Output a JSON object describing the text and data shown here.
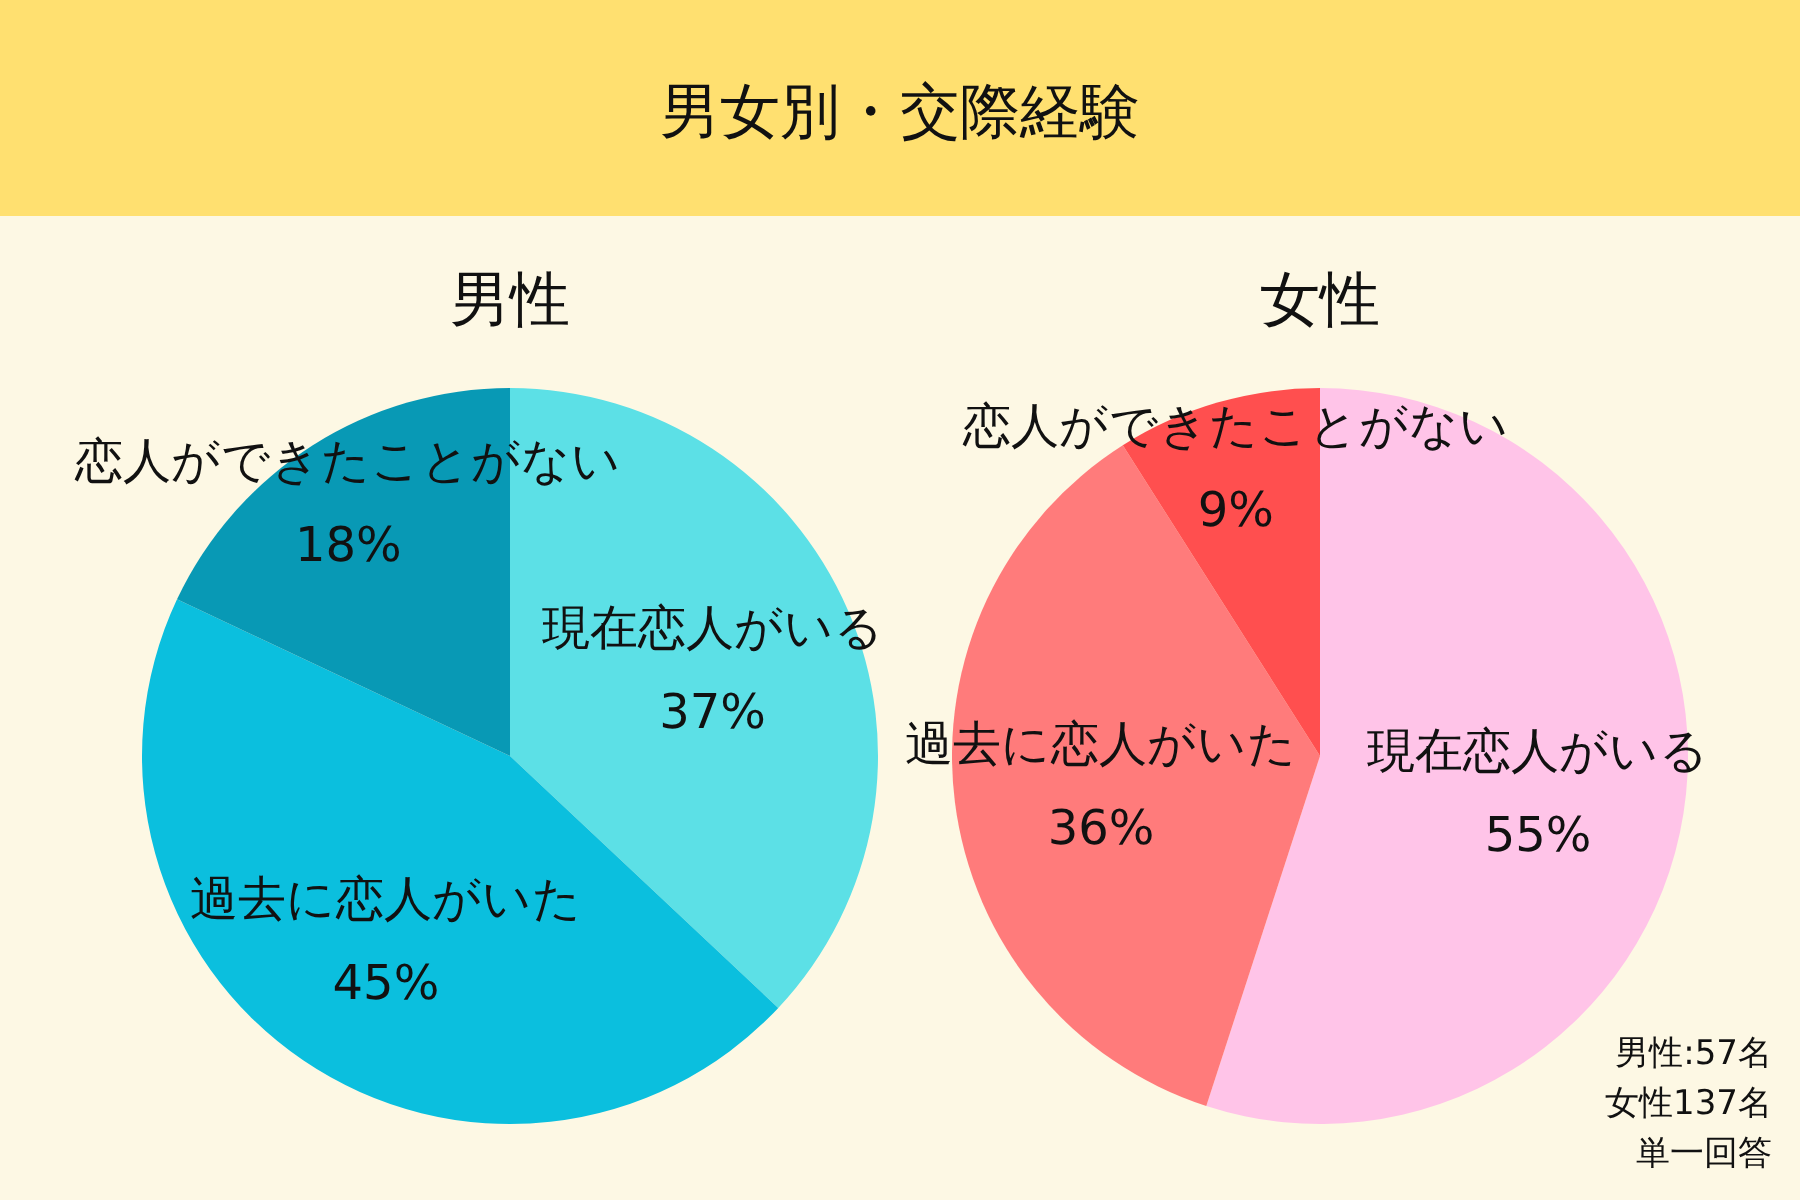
{
  "chart_data": [
    {
      "type": "pie",
      "title": "男女別・交際経験",
      "subtitle": "男性",
      "categories": [
        "現在恋人がいる",
        "過去に恋人がいた",
        "恋人ができたことがない"
      ],
      "values": [
        37,
        45,
        18
      ],
      "colors": [
        "#5ce0e6",
        "#0bbfde",
        "#0899b5"
      ],
      "value_labels": [
        "37%",
        "45%",
        "18%"
      ]
    },
    {
      "type": "pie",
      "subtitle": "女性",
      "categories": [
        "現在恋人がいる",
        "過去に恋人がいた",
        "恋人ができたことがない"
      ],
      "values": [
        55,
        36,
        9
      ],
      "colors": [
        "#ffc4e8",
        "#ff7b7b",
        "#ff4f4f"
      ],
      "value_labels": [
        "55%",
        "36%",
        "9%"
      ],
      "annotations": [
        "男性:57名",
        "女性137名",
        "単一回答"
      ]
    }
  ]
}
